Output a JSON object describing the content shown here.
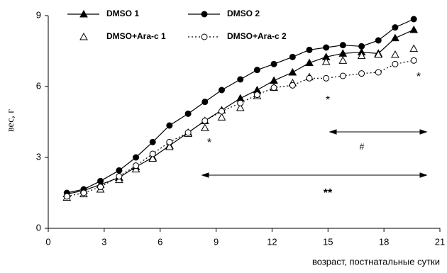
{
  "chart_data": {
    "type": "line",
    "x_label": "возраст, постнатальные сутки",
    "y_label": "вес, г",
    "xlim": [
      0,
      21
    ],
    "xticks": [
      0,
      3,
      6,
      9,
      12,
      15,
      18,
      21
    ],
    "ylim": [
      0,
      9
    ],
    "yticks": [
      0,
      3,
      6,
      9
    ],
    "x": [
      1.0,
      1.9,
      2.8,
      3.8,
      4.7,
      5.6,
      6.5,
      7.5,
      8.4,
      9.3,
      10.3,
      11.2,
      12.1,
      13.1,
      14.0,
      14.9,
      15.8,
      16.8,
      17.7,
      18.6,
      19.6
    ],
    "series": [
      {
        "name": "DMSO 1",
        "color": "#000000",
        "marker": "triangle",
        "filled": true,
        "line": "solid",
        "values": [
          1.45,
          1.6,
          1.85,
          2.15,
          2.6,
          3.0,
          3.5,
          4.05,
          4.55,
          5.0,
          5.5,
          5.85,
          6.25,
          6.6,
          7.0,
          7.25,
          7.4,
          7.45,
          7.4,
          8.05,
          8.4
        ]
      },
      {
        "name": "DMSO 2",
        "color": "#000000",
        "marker": "circle",
        "filled": true,
        "line": "solid",
        "values": [
          1.5,
          1.65,
          2.0,
          2.45,
          3.0,
          3.65,
          4.35,
          4.85,
          5.35,
          5.85,
          6.3,
          6.7,
          6.95,
          7.25,
          7.55,
          7.65,
          7.75,
          7.7,
          7.95,
          8.5,
          8.85
        ]
      },
      {
        "name": "DMSO+Ara-c 1",
        "color": "#000000",
        "marker": "triangle",
        "filled": false,
        "line": "none",
        "values": [
          1.3,
          1.45,
          1.65,
          2.05,
          2.5,
          2.95,
          3.45,
          4.0,
          4.25,
          4.7,
          5.1,
          5.6,
          5.95,
          6.15,
          6.4,
          7.05,
          7.1,
          7.3,
          7.35,
          7.35,
          7.6
        ]
      },
      {
        "name": "DMSO+Ara-c 2",
        "color": "#000000",
        "marker": "circle",
        "filled": false,
        "line": "dotted",
        "values": [
          1.35,
          1.5,
          1.75,
          2.2,
          2.65,
          3.15,
          3.65,
          4.05,
          4.55,
          4.95,
          5.3,
          5.65,
          5.95,
          6.05,
          6.35,
          6.35,
          6.45,
          6.55,
          6.6,
          6.95,
          7.1
        ]
      }
    ],
    "annotations": [
      "*",
      "*",
      "*",
      "#",
      "**"
    ]
  }
}
